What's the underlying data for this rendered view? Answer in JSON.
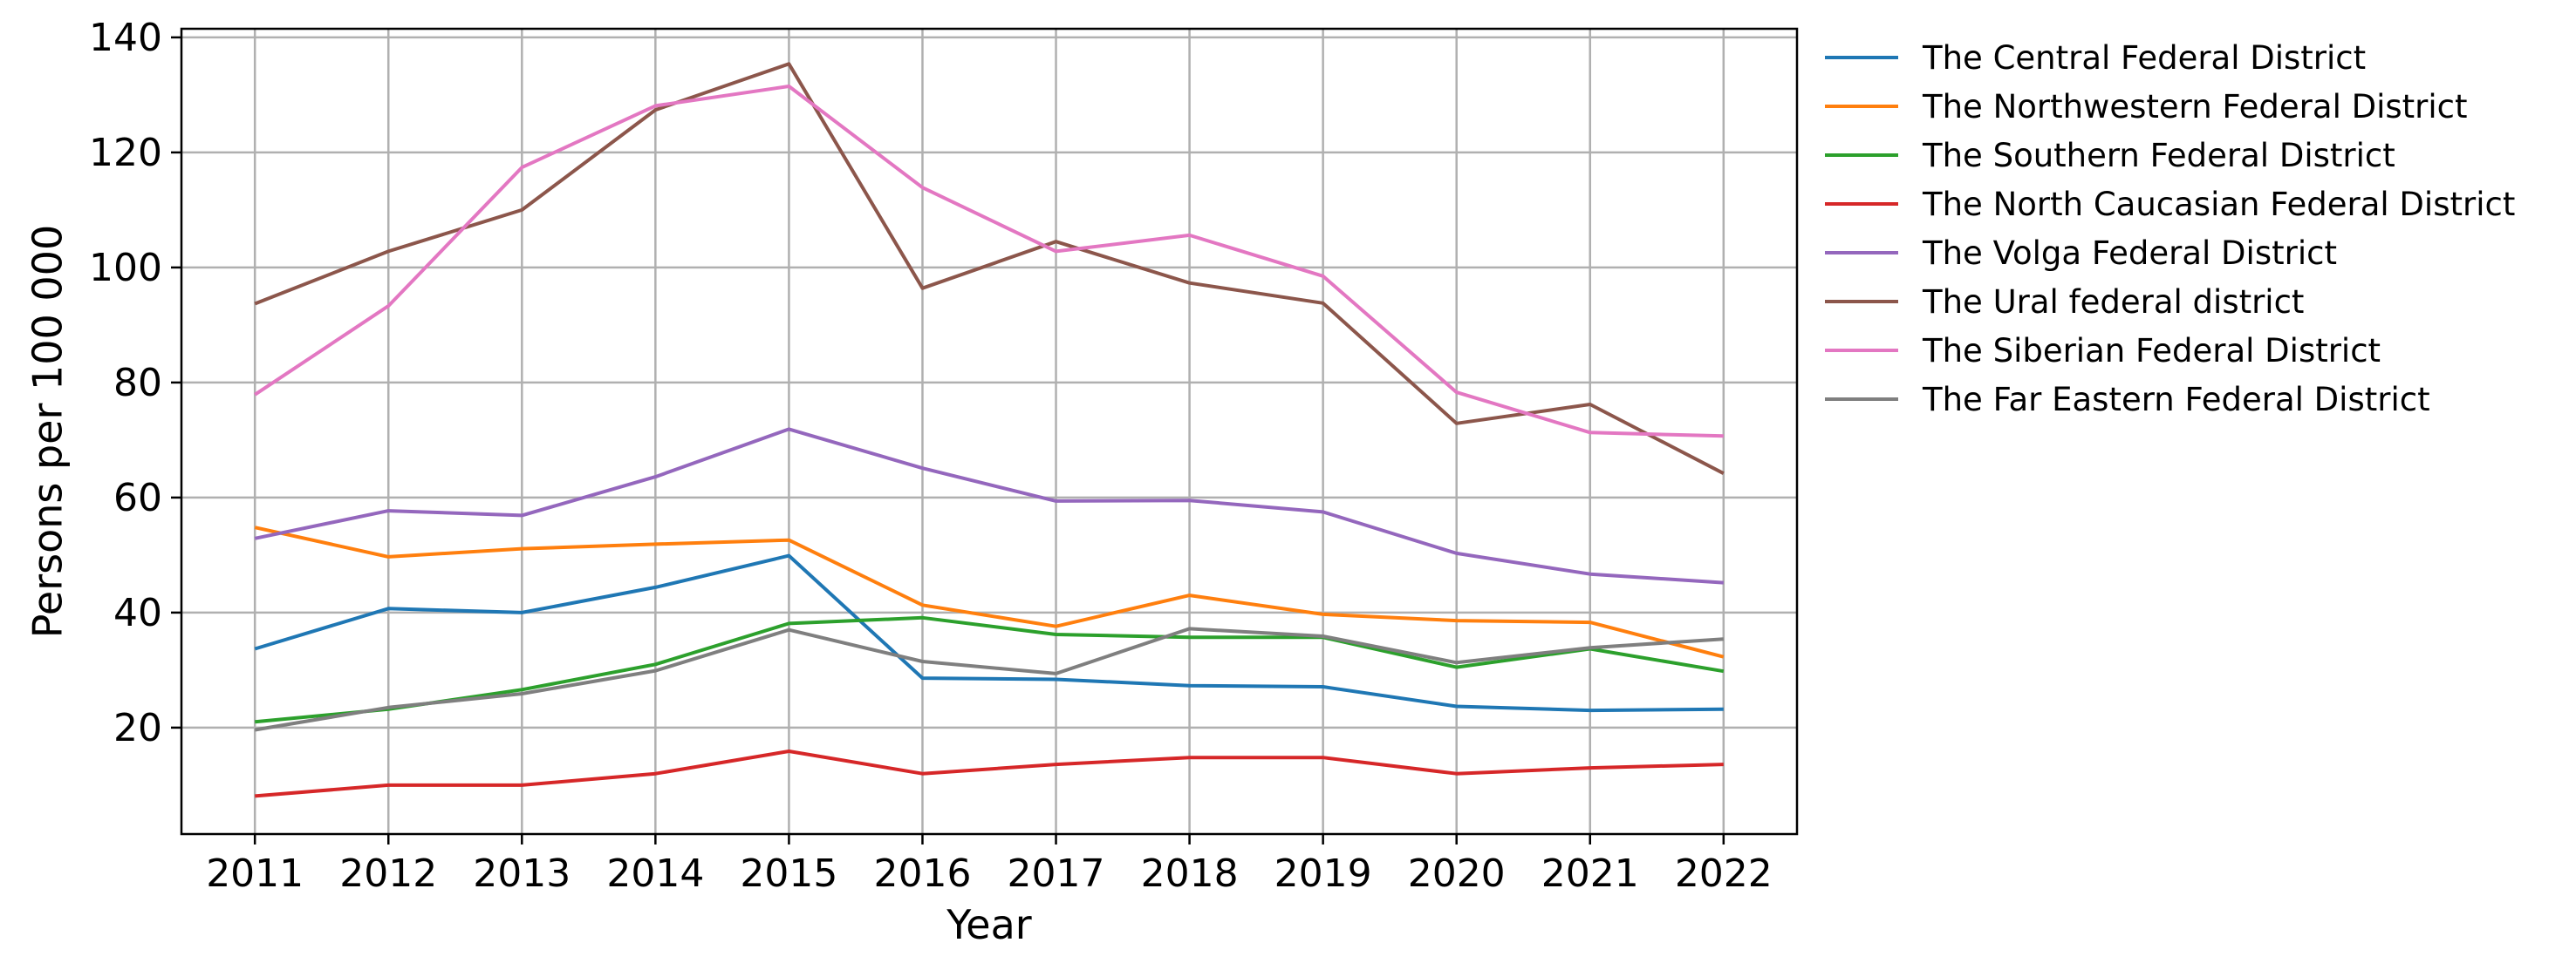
{
  "chart_data": {
    "type": "line",
    "title": "",
    "xlabel": "Year",
    "ylabel": "Persons per 100 000",
    "x": [
      2011,
      2012,
      2013,
      2014,
      2015,
      2016,
      2017,
      2018,
      2019,
      2020,
      2021,
      2022
    ],
    "ylim": [
      1.5,
      141.5
    ],
    "yticks": [
      20,
      40,
      60,
      80,
      100,
      120,
      140
    ],
    "grid": true,
    "legend_position": "outside-right",
    "series": [
      {
        "name": "The Central Federal District",
        "color": "#1f77b4",
        "values": [
          33.7,
          40.7,
          40.0,
          44.4,
          49.9,
          28.6,
          28.4,
          27.3,
          27.1,
          23.7,
          23.0,
          23.2
        ]
      },
      {
        "name": "The Northwestern Federal District",
        "color": "#ff7f0e",
        "values": [
          54.8,
          49.7,
          51.1,
          51.9,
          52.6,
          41.3,
          37.6,
          43.0,
          39.7,
          38.6,
          38.3,
          32.3
        ]
      },
      {
        "name": "The Southern Federal District",
        "color": "#2ca02c",
        "values": [
          21.0,
          23.2,
          26.6,
          31.0,
          38.1,
          39.1,
          36.2,
          35.7,
          35.7,
          30.5,
          33.7,
          29.8
        ]
      },
      {
        "name": "The North Caucasian Federal District",
        "color": "#d62728",
        "values": [
          8.1,
          10.0,
          10.0,
          12.0,
          15.9,
          12.0,
          13.6,
          14.8,
          14.8,
          12.0,
          13.0,
          13.6
        ]
      },
      {
        "name": "The Volga Federal District",
        "color": "#9467bd",
        "values": [
          52.9,
          57.7,
          56.9,
          63.6,
          71.9,
          65.1,
          59.4,
          59.5,
          57.5,
          50.3,
          46.7,
          45.2
        ]
      },
      {
        "name": "The Ural federal district",
        "color": "#8c564b",
        "values": [
          93.7,
          102.8,
          110.0,
          127.4,
          135.4,
          96.4,
          104.5,
          97.3,
          93.8,
          72.9,
          76.2,
          64.2
        ]
      },
      {
        "name": "The Siberian Federal District",
        "color": "#e377c2",
        "values": [
          77.9,
          93.3,
          117.4,
          128.1,
          131.5,
          113.9,
          102.8,
          105.6,
          98.5,
          78.3,
          71.3,
          70.7
        ]
      },
      {
        "name": "The Far Eastern Federal District",
        "color": "#7f7f7f",
        "values": [
          19.6,
          23.5,
          25.9,
          29.9,
          37.0,
          31.5,
          29.4,
          37.2,
          35.9,
          31.3,
          33.9,
          35.4
        ]
      }
    ]
  }
}
